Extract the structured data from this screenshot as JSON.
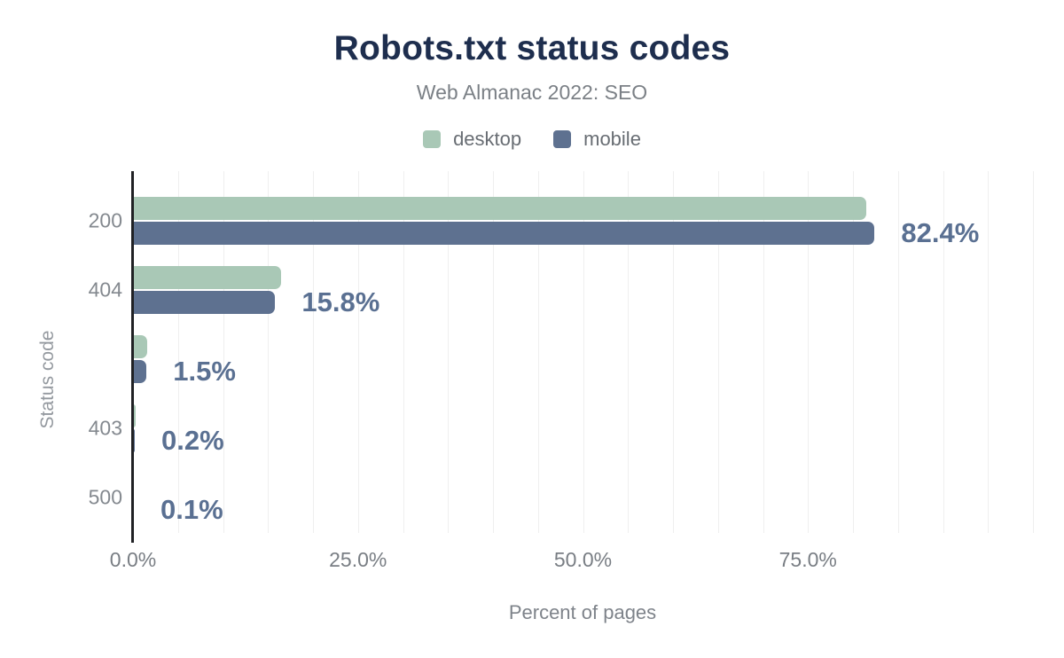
{
  "header": {
    "title": "Robots.txt status codes",
    "subtitle": "Web Almanac 2022: SEO"
  },
  "legend": [
    {
      "label": "desktop",
      "color": "#a9c8b6"
    },
    {
      "label": "mobile",
      "color": "#5e7190"
    }
  ],
  "chart_data": {
    "type": "bar",
    "orientation": "horizontal",
    "title": "Robots.txt status codes",
    "subtitle": "Web Almanac 2022: SEO",
    "categories": [
      "200",
      "404",
      "",
      "403",
      "500"
    ],
    "series": [
      {
        "name": "desktop",
        "color": "#a9c8b6",
        "values": [
          81.5,
          16.5,
          1.6,
          0.3,
          0.1
        ]
      },
      {
        "name": "mobile",
        "color": "#5e7190",
        "values": [
          82.4,
          15.8,
          1.5,
          0.2,
          0.1
        ]
      }
    ],
    "annotations": [
      "82.4%",
      "15.8%",
      "1.5%",
      "0.2%",
      "0.1%"
    ],
    "annotation_series": "mobile",
    "annotation_color": "#5a7092",
    "xlabel": "Percent of pages",
    "ylabel": "Status code",
    "xlim": [
      0,
      100
    ],
    "x_tick_values": [
      0,
      25,
      50,
      75
    ],
    "x_ticks": [
      "0.0%",
      "25.0%",
      "50.0%",
      "75.0%"
    ],
    "grid_step": 5,
    "grid": true,
    "legend_position": "top"
  }
}
